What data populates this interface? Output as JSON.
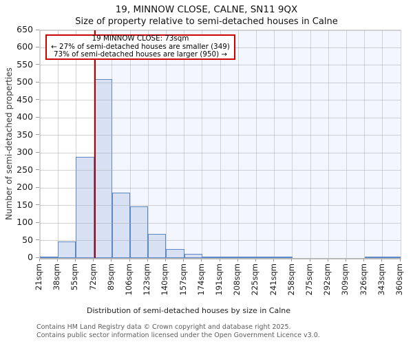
{
  "title": "19, MINNOW CLOSE, CALNE, SN11 9QX",
  "subtitle": "Size of property relative to semi-detached houses in Calne",
  "annotation": {
    "line1": "19 MINNOW CLOSE: 73sqm",
    "line2": "← 27% of semi-detached houses are smaller (349)",
    "line3": "73% of semi-detached houses are larger (950) →"
  },
  "chart_data": {
    "type": "bar",
    "title": "19, MINNOW CLOSE, CALNE, SN11 9QX — Size of property relative to semi-detached houses in Calne",
    "xlabel": "Distribution of semi-detached houses by size in Calne",
    "ylabel": "Number of semi-detached properties",
    "bin_edges_sqm": [
      21,
      38,
      55,
      72,
      89,
      106,
      123,
      140,
      157,
      174,
      191,
      208,
      225,
      241,
      258,
      275,
      292,
      309,
      326,
      343,
      360
    ],
    "bin_labels": [
      "21sqm",
      "38sqm",
      "55sqm",
      "72sqm",
      "89sqm",
      "106sqm",
      "123sqm",
      "140sqm",
      "157sqm",
      "174sqm",
      "191sqm",
      "208sqm",
      "225sqm",
      "241sqm",
      "258sqm",
      "275sqm",
      "292sqm",
      "309sqm",
      "326sqm",
      "343sqm",
      "360sqm"
    ],
    "values": [
      3,
      48,
      288,
      510,
      186,
      148,
      68,
      26,
      11,
      4,
      4,
      2,
      2,
      2,
      0,
      0,
      0,
      0,
      2,
      2
    ],
    "ylim": [
      0,
      650
    ],
    "ytick_step": 50,
    "grid": true,
    "legend": null,
    "marker": {
      "value_sqm": 73,
      "label": "19 MINNOW CLOSE: 73sqm",
      "smaller_pct": 27,
      "smaller_count": 349,
      "larger_pct": 73,
      "larger_count": 950
    },
    "colors": {
      "bar_fill": "#d7e1f3",
      "bar_edge": "#5b87c5",
      "marker_line": "#b30000",
      "annotation_border": "#cc0000",
      "shade_right_of_marker": "#f3f6fc",
      "gridline": "#d2d2d2"
    }
  },
  "footer": {
    "line1": "Contains HM Land Registry data © Crown copyright and database right 2025.",
    "line2": "Contains public sector information licensed under the Open Government Licence v3.0."
  }
}
